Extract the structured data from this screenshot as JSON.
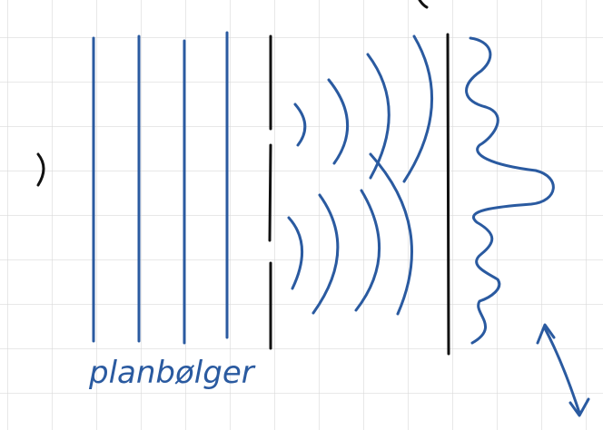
{
  "annotation": "planbølger"
}
